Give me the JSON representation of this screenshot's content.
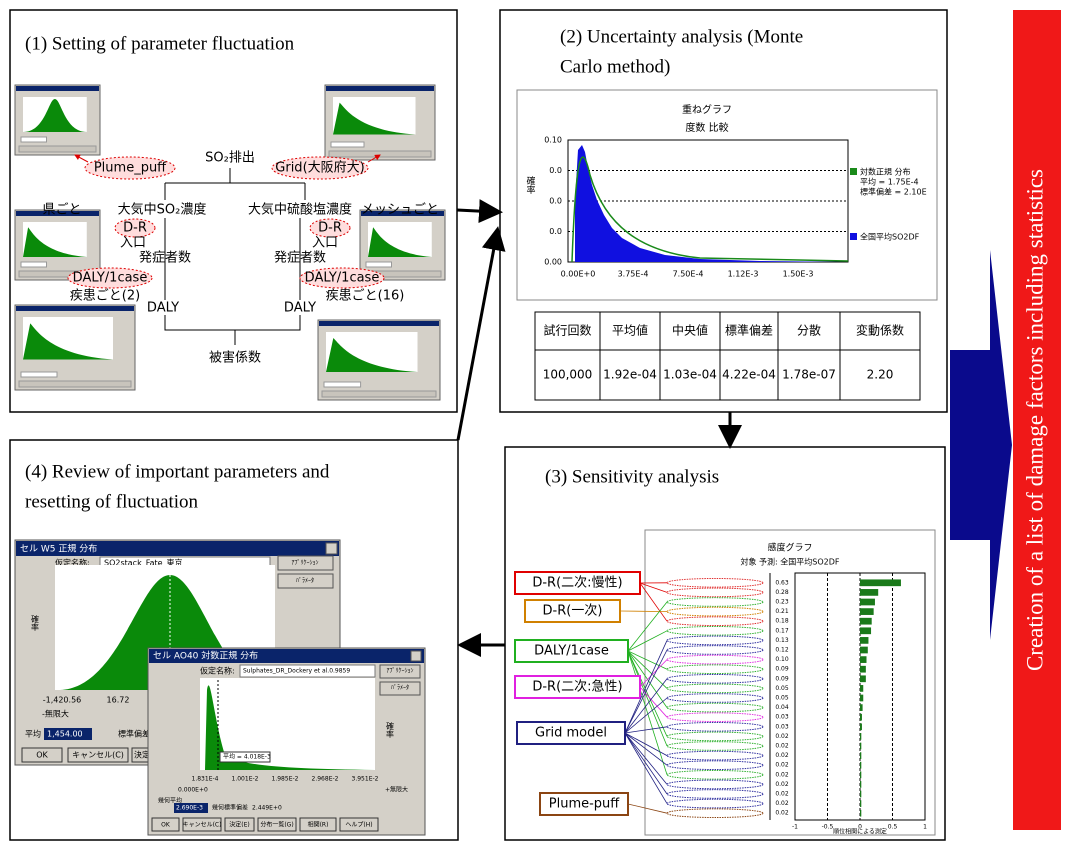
{
  "panel1": {
    "title": "(1) Setting of parameter fluctuation",
    "emission": "SO₂排出",
    "plume": "Plume_puff",
    "grid": "Grid(大阪府大)",
    "left": {
      "region": "県ごと",
      "concentration": "大気中SO₂濃度",
      "dr": "D-R",
      "population": "入口",
      "cases": "発症者数",
      "daly_case": "DALY/1case",
      "disease": "疾患ごと(2)",
      "daly": "DALY"
    },
    "right": {
      "region": "メッシュごと",
      "concentration": "大気中硫酸塩濃度",
      "dr": "D-R",
      "population": "入口",
      "cases": "発症者数",
      "daly_case": "DALY/1case",
      "disease": "疾患ごと(16)",
      "daly": "DALY"
    },
    "result": "被害係数"
  },
  "panel2": {
    "title_line1": "(2) Uncertainty analysis (Monte",
    "title_line2": "Carlo method)",
    "chart": {
      "title": "重ねグラフ",
      "subtitle": "度数 比較",
      "ylabel": "確率",
      "yticks": [
        "0.10",
        "0.0",
        "0.0",
        "0.0",
        "0.00"
      ],
      "xticks": [
        "0.00E+0",
        "3.75E-4",
        "7.50E-4",
        "1.12E-3",
        "1.50E-3"
      ],
      "legend_fit": [
        "対数正規 分布",
        "平均 = 1.75E-4",
        "標準偏差 = 2.10E"
      ],
      "legend_data": "全国平均SO2DF"
    },
    "table": {
      "header": [
        "試行回数",
        "平均値",
        "中央値",
        "標準偏差",
        "分散",
        "変動係数"
      ],
      "rows": [
        [
          "100,000",
          "1.92e-04",
          "1.03e-04",
          "4.22e-04",
          "1.78e-07",
          "2.20"
        ]
      ]
    }
  },
  "panel3": {
    "title": "(3) Sensitivity analysis",
    "groups": [
      "D-R(二次:慢性)",
      "D-R(一次)",
      "DALY/1case",
      "D-R(二次:急性)",
      "Grid model",
      "Plume-puff"
    ],
    "chart_data": {
      "type": "bar",
      "title": "感度グラフ",
      "subtitle": "対象 予測: 全国平均SO2DF",
      "xlabel": "順位相関による測定",
      "values": [
        0.63,
        0.28,
        0.23,
        0.21,
        0.18,
        0.17,
        0.13,
        0.12,
        0.1,
        0.09,
        0.09,
        0.05,
        0.05,
        0.04,
        0.03,
        0.03,
        0.02,
        0.02,
        0.02,
        0.02,
        0.02,
        0.02,
        0.02,
        0.02,
        0.02
      ],
      "value_labels": [
        "0.63",
        "0.28",
        "0.23",
        "0.21",
        "0.18",
        "0.17",
        "0.13",
        "0.12",
        "0.10",
        "0.09",
        "0.09",
        "0.05",
        "0.05",
        "0.04",
        "0.03",
        "0.03",
        "0.02",
        "0.02",
        "0.02",
        "0.02",
        "0.02",
        "0.02",
        "0.02",
        "0.02",
        "0.02"
      ],
      "row_colors": [
        "#e03030",
        "#e03030",
        "#30b030",
        "#d08000",
        "#e03030",
        "#30b030",
        "#3030a0",
        "#3030a0",
        "#e030e0",
        "#30b030",
        "#3030a0",
        "#30b030",
        "#3030a0",
        "#30b030",
        "#e030e0",
        "#3030a0",
        "#30b030",
        "#30b030",
        "#3030a0",
        "#3030a0",
        "#30b030",
        "#3030a0",
        "#3030a0",
        "#3030a0",
        "#8b4513"
      ],
      "color": "#1a7a1a",
      "xlim": [
        -1,
        1
      ],
      "xticks": [
        -1,
        -0.5,
        0,
        0.5,
        1
      ],
      "grid": true
    }
  },
  "panel4": {
    "title_line1": "(4) Review of important parameters and",
    "title_line2": "resetting of fluctuation",
    "dialog1": {
      "title": "セル W5 正規 分布",
      "name_label": "仮定名称:",
      "name": "SO2stack_Fate_東京",
      "btn_app": "ｱﾌﾟﾘｹｰｼｮﾝ",
      "btn_param": "ﾊﾟﾗﾒｰﾀ",
      "ylabel": "確率",
      "x1": "-1,420.56",
      "x2": "16.72",
      "bound": "-無限大",
      "mean_label": "平均",
      "mean": "1,454.00",
      "sd_label": "標準偏差",
      "ok": "OK",
      "cancel": "キャンセル(C)",
      "decide": "決定"
    },
    "dialog2": {
      "title": "セル AO40 対数正規 分布",
      "name_label": "仮定名称:",
      "name": "Sulphates_DR_Dockery et al.0.9859",
      "btn_app": "ｱﾌﾟﾘｹｰｼｮﾝ",
      "btn_param": "ﾊﾟﾗﾒｰﾀ",
      "ylabel": "確率",
      "mean_note": "平均 = 4.018E-3",
      "xticks": [
        "1.831E-4",
        "1.001E-2",
        "1.985E-2",
        "2.968E-2",
        "3.951E-2"
      ],
      "low": "0.000E+0",
      "high": "+無限大",
      "gmean_label": "幾何平均",
      "gmean": "2.690E-3",
      "gsd_label": "幾何標準偏差",
      "gsd": "2.449E+0",
      "buttons": [
        "OK",
        "キャンセル(C)",
        "決定(E)",
        "分布一覧(G)",
        "相関(R)",
        "ヘルプ(H)"
      ]
    }
  },
  "side": {
    "text": "Creation of a list of damage factors including statistics"
  }
}
